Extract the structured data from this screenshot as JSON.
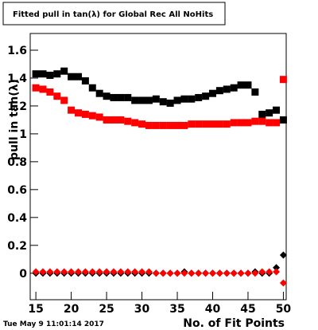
{
  "chart_data": {
    "type": "scatter",
    "title": "Fitted pull in tan(λ) for Global Rec All NoHits",
    "y_label": "pull in tan(λ)",
    "x_label": "No. of Fit Points",
    "timestamp": "Tue May  9 11:01:14 2017",
    "x": [
      15,
      16,
      17,
      18,
      19,
      20,
      21,
      22,
      23,
      24,
      25,
      26,
      27,
      28,
      29,
      30,
      31,
      32,
      33,
      34,
      35,
      36,
      37,
      38,
      39,
      40,
      41,
      42,
      43,
      44,
      45,
      46,
      47,
      48,
      49,
      50
    ],
    "series": [
      {
        "name": "black-squares",
        "color": "#000000",
        "marker": "square",
        "values": [
          1.43,
          1.43,
          1.42,
          1.43,
          1.45,
          1.41,
          1.41,
          1.38,
          1.33,
          1.29,
          1.27,
          1.26,
          1.26,
          1.26,
          1.24,
          1.24,
          1.24,
          1.25,
          1.23,
          1.22,
          1.24,
          1.25,
          1.25,
          1.26,
          1.27,
          1.29,
          1.31,
          1.32,
          1.33,
          1.35,
          1.35,
          1.3,
          1.14,
          1.15,
          1.17,
          1.1
        ]
      },
      {
        "name": "red-squares",
        "color": "#ff0000",
        "marker": "square",
        "values": [
          1.33,
          1.32,
          1.3,
          1.27,
          1.24,
          1.17,
          1.15,
          1.14,
          1.13,
          1.12,
          1.1,
          1.1,
          1.1,
          1.09,
          1.08,
          1.07,
          1.06,
          1.06,
          1.06,
          1.06,
          1.06,
          1.06,
          1.07,
          1.07,
          1.07,
          1.07,
          1.07,
          1.07,
          1.08,
          1.08,
          1.08,
          1.09,
          1.09,
          1.08,
          1.08,
          1.39
        ]
      },
      {
        "name": "black-diamonds",
        "color": "#000000",
        "marker": "diamond",
        "values": [
          0,
          0,
          0,
          0,
          0,
          0,
          0,
          0,
          0,
          0,
          0,
          0,
          0,
          0,
          0,
          0,
          0,
          0,
          0,
          0,
          0,
          0.01,
          0,
          0,
          0,
          0,
          0,
          0,
          0,
          0,
          0,
          0.01,
          0,
          0,
          0.04,
          0.13
        ]
      },
      {
        "name": "red-diamonds",
        "color": "#ff0000",
        "marker": "diamond",
        "values": [
          0.01,
          0.01,
          0.01,
          0.01,
          0.01,
          0.01,
          0.01,
          0.01,
          0.01,
          0.01,
          0.01,
          0.01,
          0.01,
          0.01,
          0.01,
          0.01,
          0.01,
          0,
          0,
          0,
          0,
          0,
          0,
          0,
          0,
          0,
          0,
          0,
          0,
          0,
          0,
          0,
          0.01,
          0.01,
          0.01,
          -0.07
        ]
      }
    ],
    "xlim": [
      14.2,
      50.4
    ],
    "ylim": [
      -0.19,
      1.72
    ],
    "xticks": [
      15,
      20,
      25,
      30,
      35,
      40,
      45,
      50
    ],
    "yticks": [
      0,
      0.2,
      0.4,
      0.6,
      0.8,
      1,
      1.2,
      1.4,
      1.6
    ]
  }
}
